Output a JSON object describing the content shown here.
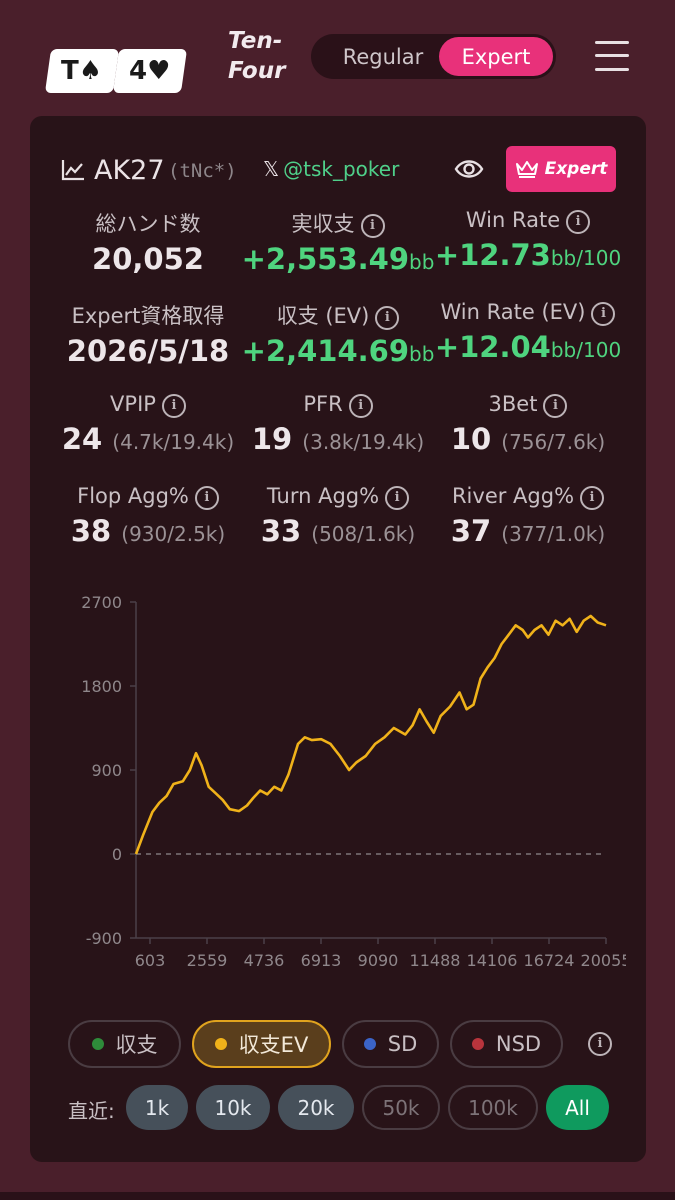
{
  "header": {
    "logo_cards": [
      "T♠",
      "4♥"
    ],
    "brand_line1": "Ten-",
    "brand_line2": "Four",
    "mode_regular": "Regular",
    "mode_expert": "Expert",
    "accent_color": "#e8317a"
  },
  "player": {
    "name": "AK27",
    "code": "(tNc*)",
    "x_handle": "@tsk_poker",
    "badge": "Expert",
    "chart_icon": "line-chart-icon",
    "eye_icon": "eye-icon",
    "crown_icon": "crown-icon"
  },
  "stats": {
    "hands": {
      "label": "総ハンド数",
      "value": "20,052"
    },
    "profit": {
      "label": "実収支",
      "value": "+2,553.49",
      "unit": "bb"
    },
    "winrate": {
      "label": "Win Rate",
      "value": "+12.73",
      "unit": "bb/100"
    },
    "expert_date": {
      "label": "Expert資格取得",
      "value": "2026/5/18"
    },
    "profit_ev": {
      "label": "収支 (EV)",
      "value": "+2,414.69",
      "unit": "bb"
    },
    "winrate_ev": {
      "label": "Win Rate (EV)",
      "value": "+12.04",
      "unit": "bb/100"
    },
    "vpip": {
      "label": "VPIP",
      "value": "24",
      "detail": "(4.7k/19.4k)"
    },
    "pfr": {
      "label": "PFR",
      "value": "19",
      "detail": "(3.8k/19.4k)"
    },
    "threebet": {
      "label": "3Bet",
      "value": "10",
      "detail": "(756/7.6k)"
    },
    "flop_agg": {
      "label": "Flop Agg%",
      "value": "38",
      "detail": "(930/2.5k)"
    },
    "turn_agg": {
      "label": "Turn Agg%",
      "value": "33",
      "detail": "(508/1.6k)"
    },
    "river_agg": {
      "label": "River Agg%",
      "value": "37",
      "detail": "(377/1.0k)"
    }
  },
  "chart_data": {
    "type": "line",
    "y_ticks": [
      "2700",
      "1800",
      "900",
      "0",
      "-900"
    ],
    "x_ticks": [
      "603",
      "2559",
      "4736",
      "6913",
      "9090",
      "11488",
      "14106",
      "16724",
      "20055"
    ],
    "ylim": [
      -900,
      2700
    ],
    "xlim": [
      0,
      20052
    ],
    "zero_line": "dashed",
    "line_color": "#f0b21a",
    "series": [
      {
        "name": "収支EV",
        "x": [
          0,
          300,
          700,
          1000,
          1300,
          1600,
          2000,
          2300,
          2559,
          2800,
          3100,
          3400,
          3700,
          4000,
          4400,
          4736,
          5000,
          5300,
          5600,
          5900,
          6200,
          6500,
          6913,
          7200,
          7500,
          7900,
          8300,
          8700,
          9090,
          9400,
          9800,
          10200,
          10600,
          11000,
          11488,
          11800,
          12100,
          12400,
          12700,
          13000,
          13400,
          13800,
          14106,
          14400,
          14700,
          15000,
          15300,
          15600,
          15900,
          16200,
          16500,
          16724,
          17000,
          17300,
          17600,
          17900,
          18200,
          18500,
          18800,
          19100,
          19400,
          19700,
          20052
        ],
        "y": [
          0,
          200,
          450,
          550,
          620,
          750,
          780,
          900,
          1080,
          950,
          720,
          650,
          580,
          480,
          460,
          520,
          600,
          680,
          640,
          720,
          680,
          850,
          1180,
          1250,
          1220,
          1230,
          1180,
          1050,
          900,
          980,
          1050,
          1180,
          1250,
          1350,
          1280,
          1380,
          1550,
          1420,
          1300,
          1480,
          1580,
          1730,
          1550,
          1600,
          1880,
          2000,
          2100,
          2250,
          2350,
          2450,
          2400,
          2320,
          2400,
          2450,
          2350,
          2500,
          2450,
          2520,
          2380,
          2500,
          2550,
          2480,
          2450
        ]
      }
    ]
  },
  "legend": [
    {
      "label": "収支",
      "color": "#2e8b3a"
    },
    {
      "label": "収支EV",
      "color": "#f0b21a"
    },
    {
      "label": "SD",
      "color": "#3b64c8"
    },
    {
      "label": "NSD",
      "color": "#b8343c"
    }
  ],
  "ranges": {
    "label": "直近:",
    "options": [
      "1k",
      "10k",
      "20k",
      "50k",
      "100k",
      "All"
    ]
  }
}
